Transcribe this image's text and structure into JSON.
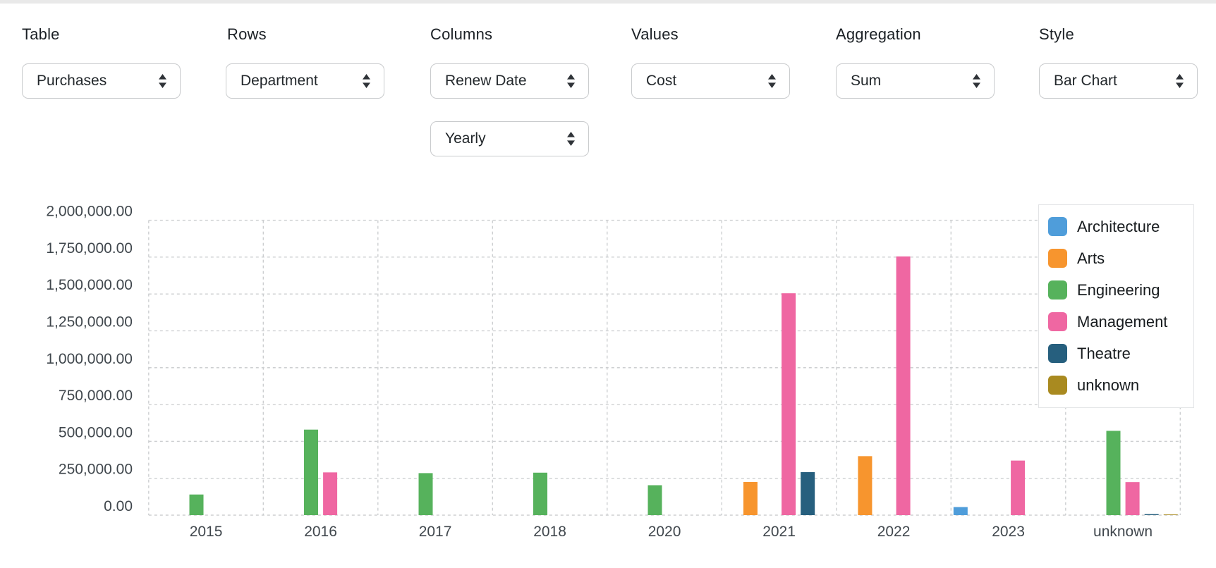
{
  "controls": [
    {
      "label": "Table",
      "value": "Purchases"
    },
    {
      "label": "Rows",
      "value": "Department"
    },
    {
      "label": "Columns",
      "value": "Renew Date",
      "extra_value": "Yearly"
    },
    {
      "label": "Values",
      "value": "Cost"
    },
    {
      "label": "Aggregation",
      "value": "Sum"
    },
    {
      "label": "Style",
      "value": "Bar Chart"
    }
  ],
  "chart_data": {
    "type": "bar",
    "categories": [
      "2015",
      "2016",
      "2017",
      "2018",
      "2020",
      "2021",
      "2022",
      "2023",
      "unknown"
    ],
    "series": [
      {
        "name": "Architecture",
        "color": "#4f9dda",
        "values": [
          0,
          0,
          0,
          0,
          0,
          0,
          0,
          55000,
          0
        ]
      },
      {
        "name": "Arts",
        "color": "#f7952e",
        "values": [
          0,
          0,
          0,
          0,
          0,
          225000,
          400000,
          0,
          0
        ]
      },
      {
        "name": "Engineering",
        "color": "#56b25c",
        "values": [
          140000,
          580000,
          285000,
          288000,
          203000,
          0,
          0,
          0,
          572000
        ]
      },
      {
        "name": "Management",
        "color": "#ef67a2",
        "values": [
          0,
          290000,
          0,
          0,
          0,
          1505000,
          1755000,
          370000,
          224000
        ]
      },
      {
        "name": "Theatre",
        "color": "#265f7e",
        "values": [
          0,
          0,
          0,
          0,
          0,
          292000,
          0,
          0,
          7000
        ]
      },
      {
        "name": "unknown",
        "color": "#a98a20",
        "values": [
          0,
          0,
          0,
          0,
          0,
          0,
          0,
          0,
          5000
        ]
      }
    ],
    "ylim": [
      0,
      2000000
    ],
    "ytick_step": 250000,
    "ytick_labels": [
      "0.00",
      "250,000.00",
      "500,000.00",
      "750,000.00",
      "1,000,000.00",
      "1,250,000.00",
      "1,500,000.00",
      "1,750,000.00",
      "2,000,000.00"
    ],
    "grid": "dashed",
    "legend_position": "top-right"
  }
}
